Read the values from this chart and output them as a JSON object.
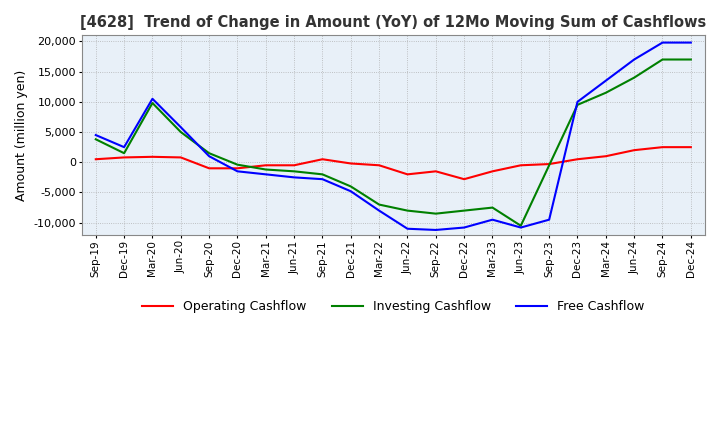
{
  "title": "[4628]  Trend of Change in Amount (YoY) of 12Mo Moving Sum of Cashflows",
  "ylabel": "Amount (million yen)",
  "ylim": [
    -12000,
    21000
  ],
  "yticks": [
    -10000,
    -5000,
    0,
    5000,
    10000,
    15000,
    20000
  ],
  "x_labels": [
    "Sep-19",
    "Dec-19",
    "Mar-20",
    "Jun-20",
    "Sep-20",
    "Dec-20",
    "Mar-21",
    "Jun-21",
    "Sep-21",
    "Dec-21",
    "Mar-22",
    "Jun-22",
    "Sep-22",
    "Dec-22",
    "Mar-23",
    "Jun-23",
    "Sep-23",
    "Dec-23",
    "Mar-24",
    "Jun-24",
    "Sep-24",
    "Dec-24"
  ],
  "operating": [
    500,
    800,
    900,
    800,
    -1000,
    -1000,
    -500,
    -500,
    500,
    -200,
    -500,
    -2000,
    -1500,
    -2800,
    -1500,
    -500,
    -300,
    500,
    1000,
    2000,
    2500,
    2500
  ],
  "investing": [
    3800,
    1500,
    9800,
    5000,
    1500,
    -400,
    -1200,
    -1500,
    -2000,
    -4000,
    -7000,
    -8000,
    -8500,
    -8000,
    -7500,
    -10500,
    -500,
    9500,
    11500,
    14000,
    17000,
    17000
  ],
  "free": [
    4500,
    2500,
    10500,
    5800,
    1000,
    -1500,
    -2000,
    -2500,
    -2800,
    -4800,
    -8000,
    -11000,
    -11200,
    -10800,
    -9500,
    -10800,
    -9500,
    10000,
    13500,
    17000,
    19800,
    19800
  ],
  "operating_color": "#FF0000",
  "investing_color": "#008000",
  "free_color": "#0000FF",
  "background_color": "#FFFFFF",
  "plot_bg_color": "#E8F0F8",
  "grid_color": "#AAAAAA",
  "legend_labels": [
    "Operating Cashflow",
    "Investing Cashflow",
    "Free Cashflow"
  ]
}
